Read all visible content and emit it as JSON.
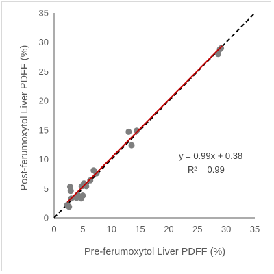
{
  "chart_data": {
    "type": "scatter",
    "title": "",
    "xlabel": "Pre-ferumoxytol Liver PDFF (%)",
    "ylabel": "Post-ferumoxytol Liver PDFF (%)",
    "xlim": [
      0,
      35
    ],
    "ylim": [
      0,
      35
    ],
    "xticks": [
      0,
      5,
      10,
      15,
      20,
      25,
      30,
      35
    ],
    "yticks": [
      0,
      5,
      10,
      15,
      20,
      25,
      30,
      35
    ],
    "grid": false,
    "legend": "none",
    "points": [
      {
        "x": 2.3,
        "y": 2.2
      },
      {
        "x": 2.6,
        "y": 1.9
      },
      {
        "x": 2.8,
        "y": 5.3
      },
      {
        "x": 2.9,
        "y": 4.6
      },
      {
        "x": 3.0,
        "y": 3.3
      },
      {
        "x": 3.9,
        "y": 3.4
      },
      {
        "x": 4.1,
        "y": 3.9
      },
      {
        "x": 4.4,
        "y": 3.6
      },
      {
        "x": 4.7,
        "y": 3.3
      },
      {
        "x": 4.8,
        "y": 5.4
      },
      {
        "x": 5.0,
        "y": 3.8
      },
      {
        "x": 5.2,
        "y": 5.9
      },
      {
        "x": 5.5,
        "y": 5.7
      },
      {
        "x": 5.6,
        "y": 5.4
      },
      {
        "x": 6.3,
        "y": 6.4
      },
      {
        "x": 6.9,
        "y": 8.1
      },
      {
        "x": 7.4,
        "y": 7.6
      },
      {
        "x": 13.0,
        "y": 14.7
      },
      {
        "x": 13.5,
        "y": 12.4
      },
      {
        "x": 14.4,
        "y": 14.9
      },
      {
        "x": 28.6,
        "y": 28.0
      },
      {
        "x": 28.9,
        "y": 28.8
      },
      {
        "x": 29.1,
        "y": 29.0
      }
    ],
    "fit_line": {
      "slope": 0.99,
      "intercept": 0.38,
      "x_range": [
        2.3,
        29.3
      ],
      "color": "#c00000"
    },
    "identity_line": {
      "slope": 1,
      "intercept": 0,
      "style": "dashed",
      "color": "#000000"
    },
    "point_color": "#7f7f7f",
    "annotations": {
      "equation": "y = 0.99x + 0.38",
      "r_squared": "R² = 0.99"
    }
  }
}
